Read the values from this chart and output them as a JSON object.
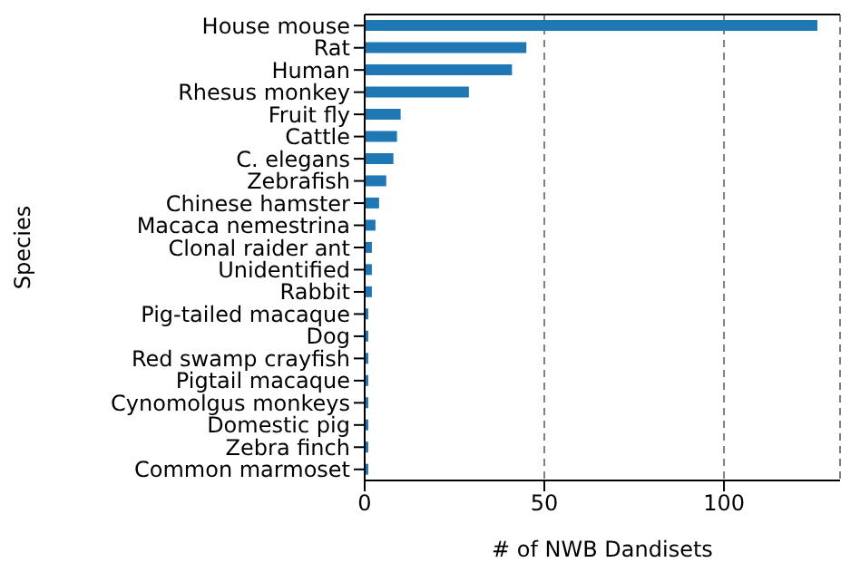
{
  "chart_data": {
    "type": "bar",
    "orientation": "horizontal",
    "categories": [
      "House mouse",
      "Rat",
      "Human",
      "Rhesus monkey",
      "Fruit fly",
      "Cattle",
      "C. elegans",
      "Zebrafish",
      "Chinese hamster",
      "Macaca nemestrina",
      "Clonal raider ant",
      "Unidentified",
      "Rabbit",
      "Pig-tailed macaque",
      "Dog",
      "Red swamp crayfish",
      "Pigtail macaque",
      "Cynomolgus monkeys",
      "Domestic pig",
      "Zebra finch",
      "Common marmoset"
    ],
    "values": [
      126,
      45,
      41,
      29,
      10,
      9,
      8,
      6,
      4,
      3,
      2,
      2,
      2,
      1,
      1,
      1,
      1,
      1,
      1,
      1,
      1
    ],
    "color": "#1f77b4",
    "xlabel": "# of NWB Dandisets",
    "ylabel": "Species",
    "xlim": [
      0,
      132.3
    ],
    "xticks": [
      0,
      50,
      100
    ],
    "grid": "x"
  }
}
